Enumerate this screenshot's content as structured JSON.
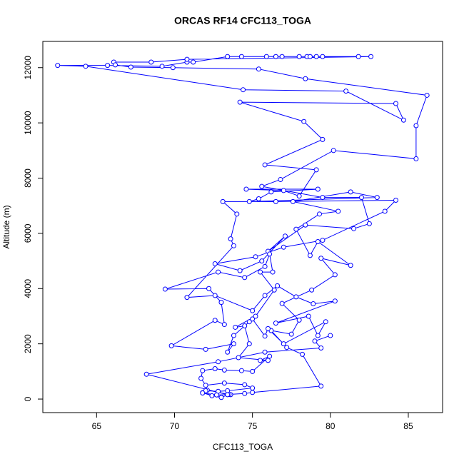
{
  "chart_data": {
    "type": "line",
    "title": "ORCAS RF14 CFC113_TOGA",
    "xlabel": "CFC113_TOGA",
    "ylabel": "Altitude (m)",
    "color": "#0000ff",
    "xlim": [
      61.55,
      87.2
    ],
    "ylim": [
      -490,
      12950
    ],
    "xticks": [
      65,
      70,
      75,
      80,
      85
    ],
    "yticks": [
      0,
      2000,
      4000,
      6000,
      8000,
      10000,
      12000
    ],
    "series": [
      {
        "name": "CFC113_TOGA",
        "color": "#0000ff",
        "x": [
          73.6,
          72.1,
          71.8,
          72.4,
          73.0,
          73.5,
          74.5,
          75.0,
          79.4,
          78.2,
          77.2,
          76.2,
          77.5,
          78.0,
          76.9,
          78.8,
          80.3,
          79.4,
          81.3,
          79.2,
          78.7,
          77.8,
          79.3,
          80.5,
          77.6,
          81.3,
          83.0,
          74.8,
          75.4,
          76.2,
          79.2,
          74.6,
          77.0,
          78.0,
          79.1,
          75.8,
          79.5,
          78.3,
          74.2,
          84.2,
          84.7,
          81.0,
          74.4,
          64.3,
          62.5,
          65.7,
          69.2,
          70.8,
          71.2,
          73.4,
          74.3,
          75.9,
          76.5,
          76.9,
          78.0,
          78.5,
          78.7,
          79.1,
          79.5,
          81.8,
          82.6,
          70.8,
          68.5,
          66.1,
          66.2,
          67.2,
          69.9,
          75.4,
          78.4,
          86.2,
          85.5,
          85.5,
          80.2,
          76.8,
          75.6,
          79.5,
          82.0,
          82.5,
          81.5,
          78.4,
          76.0,
          77.1,
          75.6,
          74.2,
          72.6,
          75.2,
          77.0,
          79.5,
          83.5,
          84.2,
          76.5,
          73.1,
          74.0,
          73.6,
          73.8,
          70.8,
          72.6,
          75.0,
          75.8,
          76.6,
          77.8,
          78.9,
          80.3,
          76.5,
          78.6,
          79.2,
          79.7,
          77.0,
          76.0,
          75.8,
          75.0,
          74.8,
          73.8,
          73.4,
          73.8,
          72.0,
          69.8,
          72.6,
          73.2,
          73.0,
          72.2,
          69.4,
          72.8,
          74.5,
          75.8,
          76.1,
          76.3,
          75.5,
          76.4,
          75.2,
          73.9,
          74.5,
          74.8,
          74.1,
          76.0,
          75.5,
          76.1,
          75.0,
          74.3,
          73.2,
          72.6,
          71.8,
          71.7,
          72.0,
          73.2,
          74.5,
          75.0,
          73.4,
          72.8,
          72.0,
          71.8,
          72.7,
          73.4,
          68.2,
          72.8,
          75.8,
          79.4,
          79.0,
          80.0
        ],
        "values": [
          160,
          320,
          230,
          120,
          60,
          170,
          200,
          240,
          470,
          1620,
          1870,
          2480,
          2350,
          2860,
          3460,
          3950,
          4500,
          5100,
          4840,
          5700,
          5200,
          6150,
          6700,
          6800,
          7150,
          7500,
          7300,
          7150,
          7250,
          7500,
          7600,
          7600,
          7550,
          7350,
          8300,
          8480,
          9400,
          10050,
          10750,
          10700,
          10100,
          11150,
          11200,
          12050,
          12080,
          12080,
          12050,
          12200,
          12200,
          12400,
          12400,
          12400,
          12400,
          12400,
          12400,
          12400,
          12400,
          12400,
          12400,
          12400,
          12400,
          12300,
          12200,
          12200,
          12100,
          12020,
          12000,
          11950,
          11600,
          11000,
          9900,
          8700,
          9000,
          7950,
          7700,
          7300,
          7300,
          6350,
          6170,
          6300,
          5350,
          5900,
          5000,
          4650,
          4900,
          5150,
          5500,
          5750,
          6800,
          7200,
          7150,
          7150,
          6700,
          5800,
          5550,
          3680,
          3750,
          3200,
          3750,
          4100,
          3700,
          3450,
          3550,
          2750,
          3000,
          2300,
          2800,
          2000,
          2550,
          2280,
          2900,
          2800,
          2300,
          1700,
          2000,
          1800,
          1930,
          2850,
          2700,
          3500,
          4000,
          3980,
          4600,
          4400,
          4800,
          5250,
          4600,
          4600,
          3950,
          3000,
          2600,
          2650,
          2000,
          1500,
          1400,
          1400,
          1550,
          1000,
          1030,
          1050,
          1100,
          1030,
          750,
          500,
          580,
          520,
          400,
          300,
          280,
          300,
          220,
          150,
          160,
          900,
          1350,
          1700,
          1850,
          2100,
          2300
        ]
      }
    ]
  }
}
